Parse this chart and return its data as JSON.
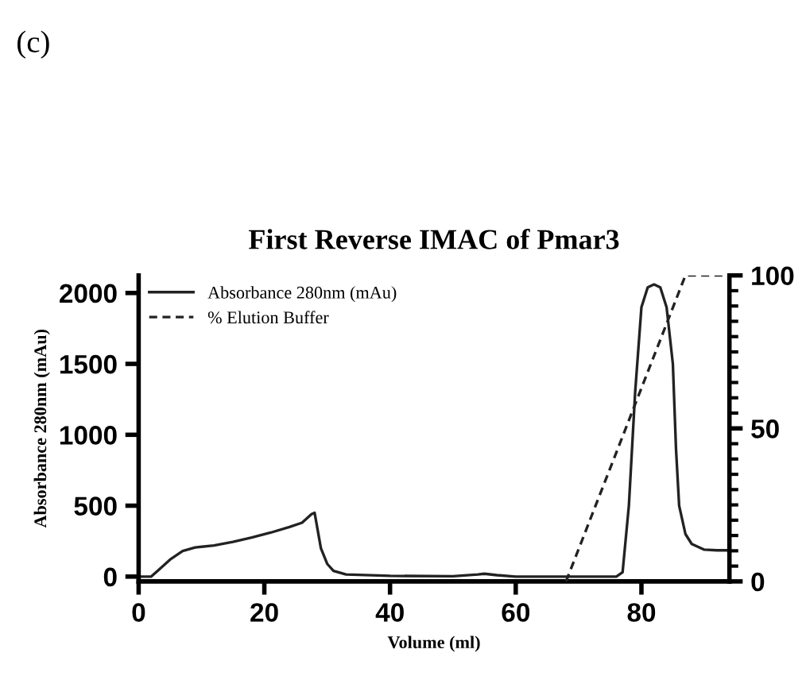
{
  "chart_data": {
    "type": "line",
    "title": "First Reverse IMAC of Pmar3",
    "xlabel": "Volume (ml)",
    "ylabel": "Absorbance 280nm (mAu)",
    "annotations": [
      "(c)"
    ],
    "legend": "top left",
    "xlim": [
      0,
      94
    ],
    "xticks": [
      0,
      20,
      40,
      60,
      80
    ],
    "ylim": [
      -34,
      2124
    ],
    "yticks": [
      0,
      500,
      1000,
      1500,
      2000
    ],
    "y2lim": [
      0,
      100
    ],
    "y2ticks": [
      0,
      50,
      100
    ],
    "series": [
      {
        "name": "Absorbance 280nm (mAu)",
        "color": "#222222",
        "line_style": "solid",
        "x": [
          0,
          2,
          3,
          5,
          7,
          9,
          12,
          15,
          18,
          21,
          24,
          26,
          27.5,
          28,
          29,
          30,
          31,
          33,
          40,
          50,
          54,
          55,
          57,
          60,
          76,
          77,
          78,
          79,
          80,
          81,
          82,
          83,
          84,
          85,
          85.5,
          86,
          87,
          88,
          90,
          92,
          93.6
        ],
        "values": [
          0,
          0,
          40,
          120,
          180,
          205,
          220,
          245,
          275,
          310,
          350,
          380,
          440,
          450,
          200,
          90,
          40,
          15,
          5,
          2,
          15,
          20,
          10,
          0,
          0,
          30,
          500,
          1300,
          1900,
          2040,
          2060,
          2040,
          1900,
          1500,
          900,
          500,
          300,
          230,
          190,
          185,
          185
        ]
      },
      {
        "name": "% Elution Buffer",
        "color": "#222222",
        "line_style": "dashed",
        "axis": "y2",
        "x": [
          68,
          87,
          94
        ],
        "values": [
          0,
          100,
          100
        ]
      }
    ]
  }
}
